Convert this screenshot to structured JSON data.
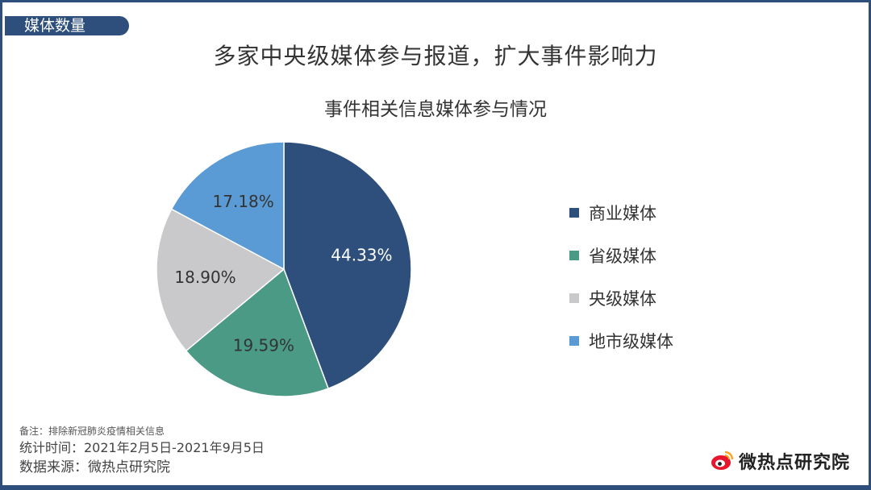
{
  "header": {
    "tag": "媒体数量",
    "title": "多家中央级媒体参与报道，扩大事件影响力"
  },
  "chart_data": {
    "type": "pie",
    "title": "事件相关信息媒体参与情况",
    "categories": [
      "商业媒体",
      "省级媒体",
      "央级媒体",
      "地市级媒体"
    ],
    "values": [
      44.33,
      19.59,
      18.9,
      17.18
    ],
    "labels": [
      "44.33%",
      "19.59%",
      "18.90%",
      "17.18%"
    ],
    "colors": [
      "#2e4f7c",
      "#4a9a86",
      "#c9c9cb",
      "#5b9bd5"
    ],
    "label_colors": [
      "#ffffff",
      "#333333",
      "#333333",
      "#333333"
    ],
    "legend_position": "right"
  },
  "footer": {
    "note": "备注：排除新冠肺炎疫情相关信息",
    "period": "统计时间：2021年2月5日-2021年9月5日",
    "source": "数据来源：微热点研究院",
    "logo_text": "微热点研究院",
    "logo_icon": "weibo-eye-icon"
  }
}
